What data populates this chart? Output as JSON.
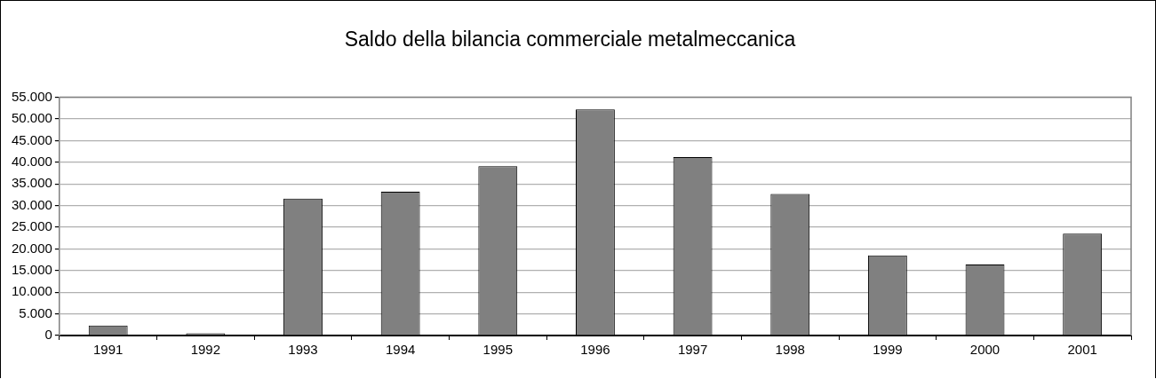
{
  "chart_data": {
    "type": "bar",
    "title": "Saldo della bilancia commerciale metalmeccanica",
    "categories": [
      "1991",
      "1992",
      "1993",
      "1994",
      "1995",
      "1996",
      "1997",
      "1998",
      "1999",
      "2000",
      "2001"
    ],
    "values": [
      2300,
      500,
      31600,
      33200,
      39100,
      52200,
      41200,
      32700,
      18500,
      16400,
      23500
    ],
    "color": "#808080",
    "ylim": [
      0,
      55000
    ],
    "yticks": [
      {
        "value": 0,
        "label": "0"
      },
      {
        "value": 5000,
        "label": "5.000"
      },
      {
        "value": 10000,
        "label": "10.000"
      },
      {
        "value": 15000,
        "label": "15.000"
      },
      {
        "value": 20000,
        "label": "20.000"
      },
      {
        "value": 25000,
        "label": "25.000"
      },
      {
        "value": 30000,
        "label": "30.000"
      },
      {
        "value": 35000,
        "label": "35.000"
      },
      {
        "value": 40000,
        "label": "40.000"
      },
      {
        "value": 45000,
        "label": "45.000"
      },
      {
        "value": 50000,
        "label": "50.000"
      },
      {
        "value": 55000,
        "label": "55.000"
      }
    ],
    "grid": "y"
  }
}
